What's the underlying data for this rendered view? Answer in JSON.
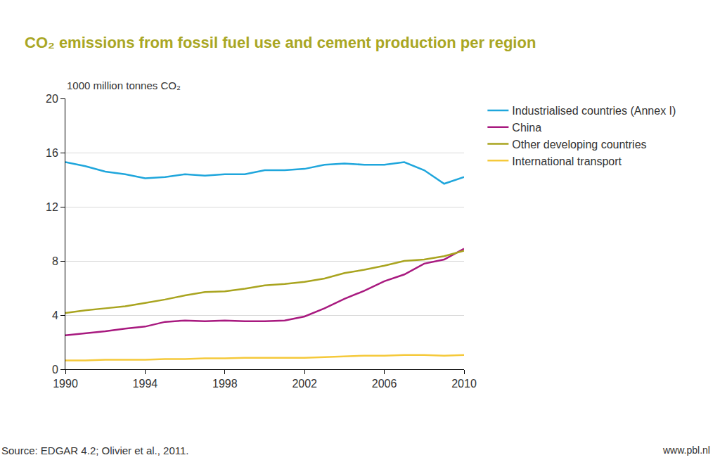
{
  "chart_data": {
    "type": "line",
    "title": "CO₂ emissions from fossil fuel use and cement production per region",
    "ylabel": "1000 million tonnes CO₂",
    "annotations": [
      "Source: EDGAR 4.2; Olivier et al., 2011.",
      "www.pbl.nl"
    ],
    "x": [
      1990,
      1991,
      1992,
      1993,
      1994,
      1995,
      1996,
      1997,
      1998,
      1999,
      2000,
      2001,
      2002,
      2003,
      2004,
      2005,
      2006,
      2007,
      2008,
      2009,
      2010
    ],
    "series": [
      {
        "name": "Industrialised countries (Annex I)",
        "color": "#1fa6dc",
        "values": [
          15.3,
          15.0,
          14.6,
          14.4,
          14.1,
          14.2,
          14.4,
          14.3,
          14.4,
          14.4,
          14.7,
          14.7,
          14.8,
          15.1,
          15.2,
          15.1,
          15.1,
          15.3,
          14.7,
          13.7,
          14.2
        ]
      },
      {
        "name": "China",
        "color": "#a8197f",
        "values": [
          2.5,
          2.65,
          2.8,
          3.0,
          3.15,
          3.5,
          3.6,
          3.55,
          3.6,
          3.55,
          3.55,
          3.6,
          3.9,
          4.5,
          5.2,
          5.8,
          6.5,
          7.0,
          7.8,
          8.1,
          8.9
        ]
      },
      {
        "name": "Other developing countries",
        "color": "#a9a41f",
        "values": [
          4.15,
          4.35,
          4.5,
          4.65,
          4.9,
          5.15,
          5.45,
          5.7,
          5.75,
          5.95,
          6.2,
          6.3,
          6.45,
          6.7,
          7.1,
          7.35,
          7.65,
          8.0,
          8.1,
          8.35,
          8.75
        ]
      },
      {
        "name": "International transport",
        "color": "#f5c93a",
        "values": [
          0.65,
          0.65,
          0.7,
          0.7,
          0.7,
          0.75,
          0.75,
          0.8,
          0.8,
          0.85,
          0.85,
          0.85,
          0.85,
          0.9,
          0.95,
          1.0,
          1.0,
          1.05,
          1.05,
          1.0,
          1.05
        ]
      }
    ],
    "xlim": [
      1990,
      2010
    ],
    "xticks": [
      1990,
      1994,
      1998,
      2002,
      2006,
      2010
    ],
    "ylim": [
      0,
      20
    ],
    "yticks": [
      0,
      4,
      8,
      12,
      16,
      20
    ],
    "grid": true,
    "legend": "right"
  }
}
